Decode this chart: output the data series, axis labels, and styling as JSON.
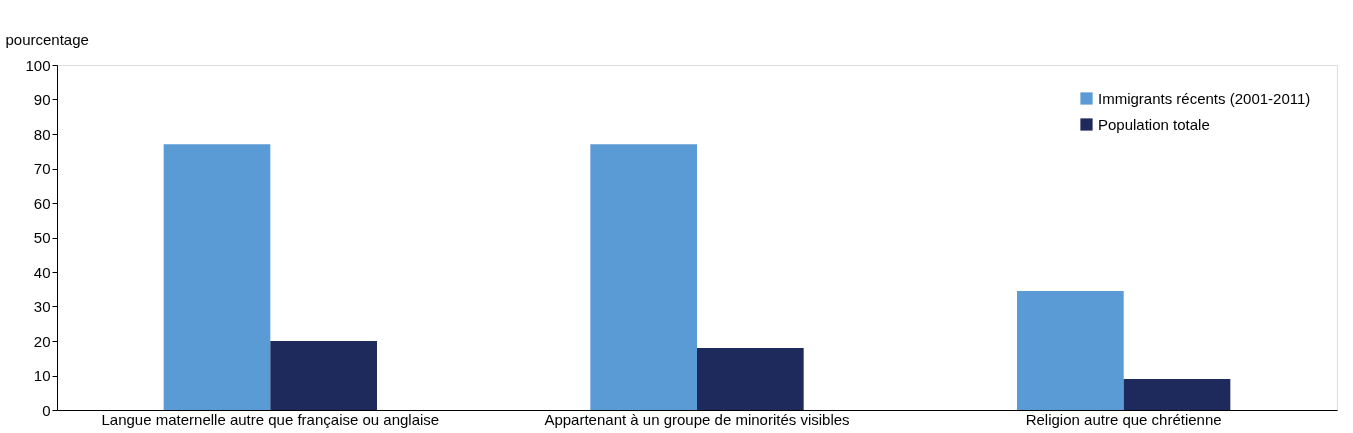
{
  "chart_data": {
    "type": "bar",
    "ylabel": "pourcentage",
    "categories": [
      "Langue maternelle autre que française ou anglaise",
      "Appartenant à un groupe de minorités visibles",
      "Religion autre que chrétienne"
    ],
    "series": [
      {
        "name": "Immigrants récents (2001-2011)",
        "color": "#5b9bd5",
        "values": [
          77,
          77,
          34.5
        ]
      },
      {
        "name": "Population totale",
        "color": "#1f2a5c",
        "values": [
          20,
          18,
          9
        ]
      }
    ],
    "ylim": [
      0,
      100
    ],
    "yticks": [
      0,
      10,
      20,
      30,
      40,
      50,
      60,
      70,
      80,
      90,
      100
    ],
    "grid": false,
    "legend": "top right"
  }
}
